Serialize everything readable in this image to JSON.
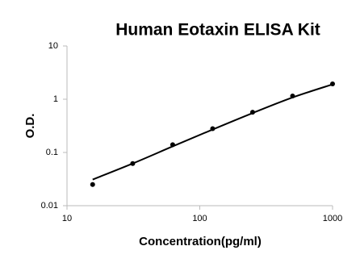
{
  "chart_data": {
    "type": "scatter",
    "title": "Human Eotaxin ELISA Kit",
    "xlabel": "Concentration(pg/ml)",
    "ylabel": "O.D.",
    "x": [
      15.6,
      31.25,
      62.5,
      125,
      250,
      500,
      1000
    ],
    "values": [
      0.025,
      0.062,
      0.14,
      0.28,
      0.57,
      1.15,
      1.94
    ],
    "fit": {
      "x": [
        15.6,
        31.25,
        62.5,
        125,
        250,
        500,
        1000
      ],
      "values": [
        0.031,
        0.062,
        0.13,
        0.27,
        0.55,
        1.08,
        1.9
      ]
    },
    "color": "#000000",
    "xlog": true,
    "ylog": true,
    "xlim": [
      10,
      1000
    ],
    "ylim": [
      0.01,
      10
    ],
    "xticks": [
      10,
      100,
      1000
    ],
    "yticks": [
      0.01,
      0.1,
      1,
      10
    ],
    "grid": false
  }
}
